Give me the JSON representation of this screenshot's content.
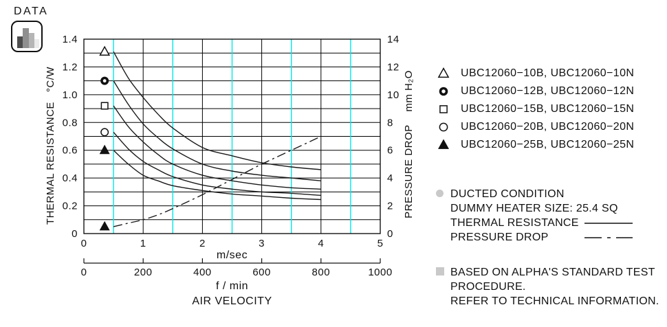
{
  "header": {
    "label": "DATA"
  },
  "chart_data": {
    "type": "line",
    "title": "",
    "x_axis": {
      "label": "m/sec",
      "range": [
        0,
        5
      ],
      "tick_values": [
        0,
        1,
        2,
        3,
        4,
        5
      ],
      "tick_labels": [
        "0",
        "1",
        "2",
        "3",
        "4",
        "5"
      ],
      "cyan_lines": [
        0.5,
        1.5,
        2.5,
        3.5,
        4.5
      ]
    },
    "x_axis_secondary": {
      "label": "f / min",
      "range": [
        0,
        1000
      ],
      "tick_values": [
        0,
        200,
        400,
        600,
        800,
        1000
      ],
      "tick_labels": [
        "0",
        "200",
        "400",
        "600",
        "800",
        "1000"
      ]
    },
    "x_axis_title": "AIR VELOCITY",
    "y_left": {
      "title": "THERMAL RESISTANCE",
      "units": "°C/W",
      "range": [
        0,
        1.4
      ],
      "grid_step": 0.1,
      "tick_values": [
        0,
        0.2,
        0.4,
        0.6,
        0.8,
        1.0,
        1.2,
        1.4
      ],
      "tick_labels": [
        "0",
        "0.2",
        "0.4",
        "0.6",
        "0.8",
        "1.0",
        "1.2",
        "1.4"
      ]
    },
    "y_right": {
      "title": "PRESSURE DROP",
      "units": "mm H₂O",
      "range": [
        0,
        14
      ],
      "tick_values": [
        0,
        2,
        4,
        6,
        8,
        10,
        12,
        14
      ],
      "tick_labels": [
        "0",
        "2",
        "4",
        "6",
        "8",
        "10",
        "12",
        "14"
      ]
    },
    "colors": {
      "grid": "#000000",
      "cyan_grid": "#00e8e8",
      "curve": "#1a1a1a"
    },
    "marker_column_x": 0.35,
    "x_samples": [
      0.5,
      0.75,
      1.0,
      1.25,
      1.5,
      2.0,
      2.5,
      3.0,
      3.5,
      4.0
    ],
    "series": [
      {
        "name": "UBC12060-10B, UBC12060-10N",
        "marker": "triangle-open",
        "axis": "left",
        "values": [
          1.31,
          1.12,
          0.98,
          0.86,
          0.76,
          0.62,
          0.56,
          0.51,
          0.48,
          0.46
        ]
      },
      {
        "name": "UBC12060-12B, UBC12060-12N",
        "marker": "bullseye",
        "axis": "left",
        "values": [
          1.1,
          0.93,
          0.79,
          0.69,
          0.61,
          0.5,
          0.45,
          0.42,
          0.4,
          0.38
        ]
      },
      {
        "name": "UBC12060-15B, UBC12060-15N",
        "marker": "square-open",
        "axis": "left",
        "values": [
          0.92,
          0.77,
          0.66,
          0.57,
          0.5,
          0.42,
          0.38,
          0.35,
          0.33,
          0.32
        ]
      },
      {
        "name": "UBC12060-20B, UBC12060-20N",
        "marker": "circle-open",
        "axis": "left",
        "values": [
          0.73,
          0.61,
          0.52,
          0.46,
          0.41,
          0.35,
          0.32,
          0.3,
          0.29,
          0.275
        ]
      },
      {
        "name": "UBC12060-25B, UBC12060-25N",
        "marker": "triangle-filled",
        "axis": "left",
        "values": [
          0.6,
          0.5,
          0.42,
          0.38,
          0.345,
          0.31,
          0.285,
          0.27,
          0.255,
          0.245
        ]
      }
    ],
    "pressure_series": {
      "name": "PRESSURE DROP",
      "axis": "right",
      "style": "dash-dot",
      "marker": "triangle-filled",
      "marker_y_right": 0.5,
      "values": [
        0.5,
        0.75,
        1.0,
        1.35,
        1.8,
        2.8,
        3.9,
        5.0,
        6.0,
        7.0
      ]
    }
  },
  "legend": {
    "items": [
      {
        "marker": "triangle-open",
        "label": "UBC12060−10B, UBC12060−10N"
      },
      {
        "marker": "bullseye",
        "label": "UBC12060−12B, UBC12060−12N"
      },
      {
        "marker": "square-open",
        "label": "UBC12060−15B, UBC12060−15N"
      },
      {
        "marker": "circle-open",
        "label": "UBC12060−20B, UBC12060−20N"
      },
      {
        "marker": "triangle-filled",
        "label": "UBC12060−25B, UBC12060−25N"
      }
    ]
  },
  "notes": {
    "bullet_color": "#c9c9c9",
    "rows": [
      {
        "text": "DUCTED CONDITION"
      },
      {
        "text": "DUMMY HEATER SIZE: 25.4 SQ"
      },
      {
        "text": "THERMAL RESISTANCE",
        "specimen": "solid"
      },
      {
        "text": "PRESSURE DROP",
        "specimen": "dash-dot"
      }
    ]
  },
  "footnote": {
    "bullet_color": "#c9c9c9",
    "lines": [
      "BASED ON ALPHA'S STANDARD TEST",
      "PROCEDURE.",
      "REFER TO TECHNICAL INFORMATION."
    ]
  }
}
